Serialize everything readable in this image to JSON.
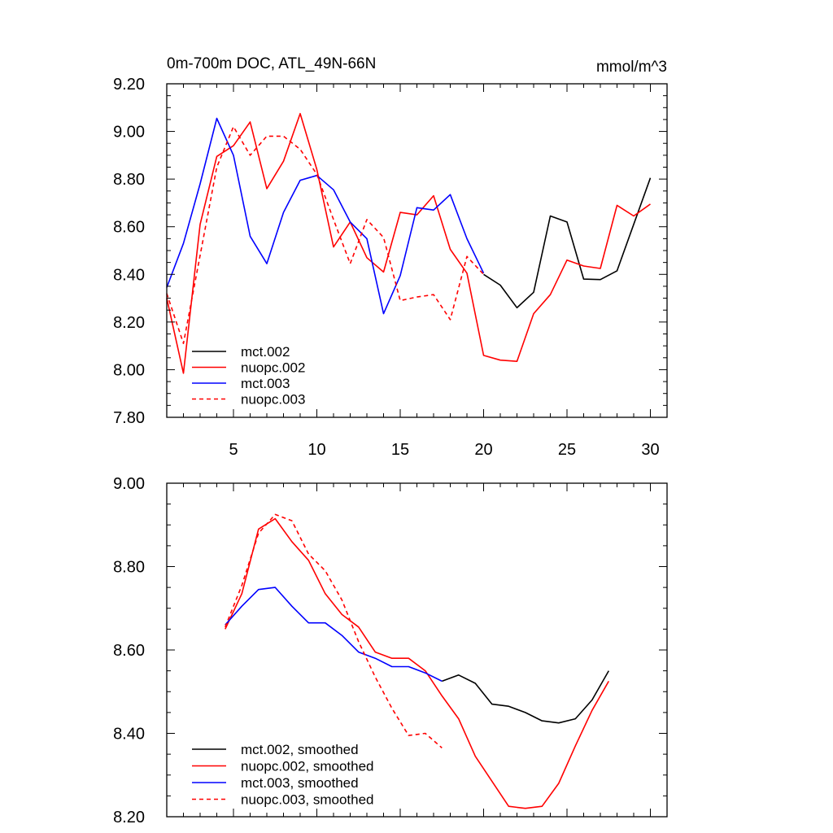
{
  "chart_data": [
    {
      "type": "line",
      "title": "0m-700m DOC, ATL_49N-66N",
      "units": "mmol/m^3",
      "xlim": [
        1,
        31
      ],
      "ylim": [
        7.8,
        9.2
      ],
      "x_ticks": [
        5,
        10,
        15,
        20,
        25,
        30
      ],
      "x_tick_labels": [
        "5",
        "10",
        "15",
        "20",
        "25",
        "30"
      ],
      "y_ticks": [
        7.8,
        8.0,
        8.2,
        8.4,
        8.6,
        8.8,
        9.0,
        9.2
      ],
      "y_tick_labels": [
        "7.80",
        "8.00",
        "8.20",
        "8.40",
        "8.60",
        "8.80",
        "9.00",
        "9.20"
      ],
      "legend_position": "bottom-left",
      "series": [
        {
          "name": "mct.002",
          "color": "#000000",
          "dash": "solid",
          "x": [
            20,
            21,
            22,
            23,
            24,
            25,
            26,
            27,
            28,
            29,
            30
          ],
          "values": [
            8.4,
            8.355,
            8.26,
            8.325,
            8.645,
            8.62,
            8.38,
            8.378,
            8.415,
            8.61,
            8.805
          ]
        },
        {
          "name": "nuopc.002",
          "color": "#ff0000",
          "dash": "solid",
          "x": [
            1,
            2,
            3,
            4,
            5,
            6,
            7,
            8,
            9,
            10,
            11,
            12,
            13,
            14,
            15,
            16,
            17,
            18,
            19,
            20,
            21,
            22,
            23,
            24,
            25,
            26,
            27,
            28,
            29,
            30
          ],
          "values": [
            8.3,
            7.985,
            8.61,
            8.895,
            8.94,
            9.04,
            8.76,
            8.875,
            9.075,
            8.84,
            8.515,
            8.62,
            8.47,
            8.41,
            8.66,
            8.65,
            8.73,
            8.505,
            8.405,
            8.06,
            8.04,
            8.035,
            8.235,
            8.315,
            8.46,
            8.435,
            8.425,
            8.69,
            8.645,
            8.695
          ]
        },
        {
          "name": "mct.003",
          "color": "#0000ff",
          "dash": "solid",
          "x": [
            1,
            2,
            3,
            4,
            5,
            6,
            7,
            8,
            9,
            10,
            11,
            12,
            13,
            14,
            15,
            16,
            17,
            18,
            19,
            20
          ],
          "values": [
            8.345,
            8.53,
            8.78,
            9.055,
            8.9,
            8.56,
            8.445,
            8.66,
            8.795,
            8.815,
            8.755,
            8.62,
            8.55,
            8.235,
            8.395,
            8.68,
            8.67,
            8.735,
            8.55,
            8.405
          ]
        },
        {
          "name": "nuopc.003",
          "color": "#ff0000",
          "dash": "dashed",
          "x": [
            1,
            2,
            3,
            4,
            5,
            6,
            7,
            8,
            9,
            10,
            11,
            12,
            13,
            14,
            15,
            16,
            17,
            18,
            19,
            20
          ],
          "values": [
            8.32,
            8.11,
            8.48,
            8.85,
            9.02,
            8.9,
            8.98,
            8.98,
            8.925,
            8.82,
            8.63,
            8.445,
            8.63,
            8.555,
            8.29,
            8.305,
            8.315,
            8.21,
            8.475,
            8.4
          ]
        }
      ]
    },
    {
      "type": "line",
      "title": "",
      "units": "",
      "xlim": [
        1,
        31
      ],
      "ylim": [
        8.2,
        9.0
      ],
      "x_ticks": [
        5,
        10,
        15,
        20,
        25,
        30
      ],
      "x_tick_labels": [],
      "y_ticks": [
        8.2,
        8.4,
        8.6,
        8.8,
        9.0
      ],
      "y_tick_labels": [
        "8.20",
        "8.40",
        "8.60",
        "8.80",
        "9.00"
      ],
      "legend_position": "bottom-left",
      "series": [
        {
          "name": "mct.002, smoothed",
          "color": "#000000",
          "dash": "solid",
          "x": [
            17.5,
            18.5,
            19.5,
            20.5,
            21.5,
            22.5,
            23.5,
            24.5,
            25.5,
            26.5,
            27.5
          ],
          "values": [
            8.525,
            8.54,
            8.52,
            8.47,
            8.465,
            8.45,
            8.43,
            8.425,
            8.435,
            8.48,
            8.55
          ]
        },
        {
          "name": "nuopc.002, smoothed",
          "color": "#ff0000",
          "dash": "solid",
          "x": [
            4.5,
            5.5,
            6.5,
            7.5,
            8.5,
            9.5,
            10.5,
            11.5,
            12.5,
            13.5,
            14.5,
            15.5,
            16.5,
            17.5,
            18.5,
            19.5,
            20.5,
            21.5,
            22.5,
            23.5,
            24.5,
            25.5,
            26.5,
            27.5
          ],
          "values": [
            8.65,
            8.735,
            8.89,
            8.915,
            8.86,
            8.815,
            8.735,
            8.685,
            8.655,
            8.595,
            8.58,
            8.58,
            8.55,
            8.49,
            8.435,
            8.345,
            8.285,
            8.225,
            8.22,
            8.225,
            8.28,
            8.37,
            8.455,
            8.525
          ]
        },
        {
          "name": "mct.003, smoothed",
          "color": "#0000ff",
          "dash": "solid",
          "x": [
            4.5,
            5.5,
            6.5,
            7.5,
            8.5,
            9.5,
            10.5,
            11.5,
            12.5,
            13.5,
            14.5,
            15.5,
            16.5,
            17.5
          ],
          "values": [
            8.66,
            8.705,
            8.745,
            8.75,
            8.705,
            8.665,
            8.665,
            8.635,
            8.595,
            8.58,
            8.56,
            8.56,
            8.545,
            8.525
          ]
        },
        {
          "name": "nuopc.003, smoothed",
          "color": "#ff0000",
          "dash": "dashed",
          "x": [
            4.5,
            5.5,
            6.5,
            7.5,
            8.5,
            9.5,
            10.5,
            11.5,
            12.5,
            13.5,
            14.5,
            15.5,
            16.5,
            17.5
          ],
          "values": [
            8.655,
            8.755,
            8.88,
            8.925,
            8.91,
            8.83,
            8.79,
            8.72,
            8.62,
            8.535,
            8.46,
            8.395,
            8.4,
            8.365
          ]
        }
      ]
    }
  ]
}
